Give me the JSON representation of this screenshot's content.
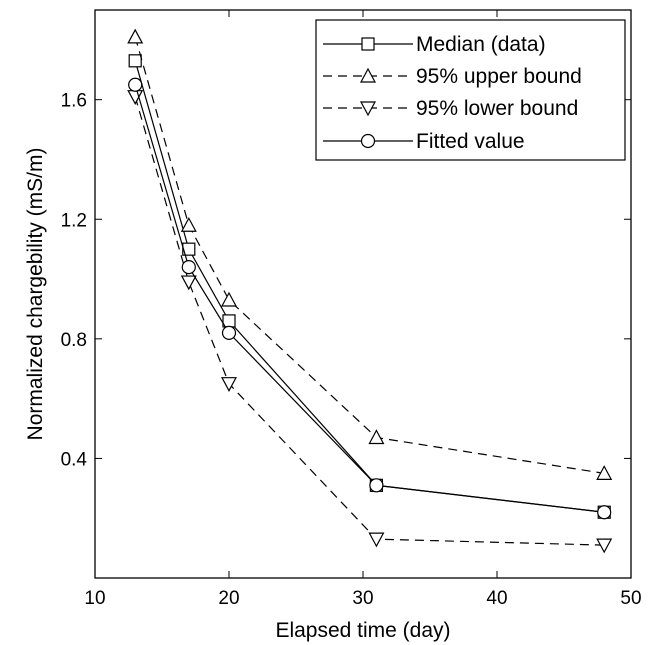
{
  "chart_data": {
    "type": "line",
    "title": "",
    "xlabel": "Elapsed time (day)",
    "ylabel": "Normalized chargebility (mS/m)",
    "xlim": [
      10,
      50
    ],
    "ylim": [
      0,
      1.9
    ],
    "xticks": [
      10,
      20,
      30,
      40,
      50
    ],
    "yticks": [
      0.4,
      0.8,
      1.2,
      1.6
    ],
    "xtick_labels": [
      "10",
      "20",
      "30",
      "40",
      "50"
    ],
    "ytick_labels": [
      "0.4",
      "0.8",
      "1.2",
      "1.6"
    ],
    "grid": false,
    "legend_position": "top-right",
    "x": [
      13,
      17,
      20,
      31,
      48
    ],
    "series": [
      {
        "name": "Median (data)",
        "values": [
          1.73,
          1.1,
          0.86,
          0.31,
          0.22
        ],
        "marker": "square",
        "line_style": "solid"
      },
      {
        "name": "95% upper bound",
        "values": [
          1.81,
          1.18,
          0.93,
          0.47,
          0.35
        ],
        "marker": "triangle-up",
        "line_style": "dashed"
      },
      {
        "name": "95% lower bound",
        "values": [
          1.61,
          0.99,
          0.65,
          0.13,
          0.11
        ],
        "marker": "triangle-down",
        "line_style": "dashed"
      },
      {
        "name": "Fitted value",
        "values": [
          1.65,
          1.04,
          0.82,
          0.31,
          0.22
        ],
        "marker": "circle",
        "line_style": "solid"
      }
    ]
  },
  "colors": {
    "line": "#000000",
    "background": "#ffffff"
  }
}
